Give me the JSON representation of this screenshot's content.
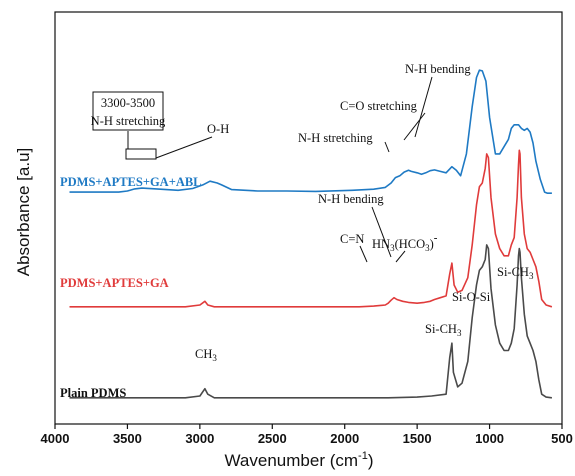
{
  "chart_data": {
    "type": "line",
    "xlabel": "Wavenumber (cm",
    "xlabel_sup": "-1",
    "xlabel_close": ")",
    "ylabel": "Absorbance [a.u]",
    "xlim": [
      4000,
      500
    ],
    "x_reversed": true,
    "x_ticks": [
      "4000",
      "3500",
      "3000",
      "2500",
      "2000",
      "1500",
      "1000",
      "500"
    ],
    "y_ticks": [],
    "grid": false,
    "series": [
      {
        "name": "PDMS+APTES+GA+ABL",
        "color": "#1f7ac4",
        "points": [
          [
            3900,
            0.615
          ],
          [
            3700,
            0.615
          ],
          [
            3560,
            0.615
          ],
          [
            3500,
            0.618
          ],
          [
            3450,
            0.624
          ],
          [
            3400,
            0.626
          ],
          [
            3300,
            0.624
          ],
          [
            3150,
            0.62
          ],
          [
            3050,
            0.625
          ],
          [
            2980,
            0.635
          ],
          [
            2930,
            0.645
          ],
          [
            2880,
            0.64
          ],
          [
            2850,
            0.635
          ],
          [
            2780,
            0.622
          ],
          [
            2600,
            0.618
          ],
          [
            2400,
            0.618
          ],
          [
            2200,
            0.617
          ],
          [
            1950,
            0.62
          ],
          [
            1800,
            0.623
          ],
          [
            1720,
            0.628
          ],
          [
            1680,
            0.64
          ],
          [
            1650,
            0.655
          ],
          [
            1620,
            0.66
          ],
          [
            1590,
            0.67
          ],
          [
            1560,
            0.675
          ],
          [
            1540,
            0.672
          ],
          [
            1500,
            0.668
          ],
          [
            1470,
            0.664
          ],
          [
            1440,
            0.668
          ],
          [
            1410,
            0.674
          ],
          [
            1380,
            0.676
          ],
          [
            1340,
            0.672
          ],
          [
            1300,
            0.668
          ],
          [
            1260,
            0.685
          ],
          [
            1230,
            0.675
          ],
          [
            1200,
            0.66
          ],
          [
            1160,
            0.72
          ],
          [
            1120,
            0.85
          ],
          [
            1090,
            0.93
          ],
          [
            1070,
            0.95
          ],
          [
            1050,
            0.948
          ],
          [
            1025,
            0.92
          ],
          [
            1000,
            0.82
          ],
          [
            960,
            0.72
          ],
          [
            930,
            0.72
          ],
          [
            900,
            0.74
          ],
          [
            870,
            0.76
          ],
          [
            850,
            0.79
          ],
          [
            830,
            0.8
          ],
          [
            800,
            0.8
          ],
          [
            780,
            0.79
          ],
          [
            760,
            0.785
          ],
          [
            740,
            0.79
          ],
          [
            720,
            0.78
          ],
          [
            700,
            0.75
          ],
          [
            680,
            0.7
          ],
          [
            650,
            0.65
          ],
          [
            620,
            0.615
          ],
          [
            600,
            0.612
          ],
          [
            570,
            0.612
          ]
        ]
      },
      {
        "name": "PDMS+APTES+GA",
        "color": "#e03b3b",
        "points": [
          [
            3900,
            0.3
          ],
          [
            3700,
            0.3
          ],
          [
            3500,
            0.3
          ],
          [
            3300,
            0.3
          ],
          [
            3100,
            0.3
          ],
          [
            3000,
            0.305
          ],
          [
            2965,
            0.315
          ],
          [
            2945,
            0.305
          ],
          [
            2900,
            0.3
          ],
          [
            2700,
            0.3
          ],
          [
            2500,
            0.3
          ],
          [
            2300,
            0.3
          ],
          [
            2100,
            0.3
          ],
          [
            1900,
            0.3
          ],
          [
            1800,
            0.302
          ],
          [
            1720,
            0.305
          ],
          [
            1700,
            0.31
          ],
          [
            1680,
            0.318
          ],
          [
            1660,
            0.325
          ],
          [
            1640,
            0.32
          ],
          [
            1600,
            0.315
          ],
          [
            1560,
            0.312
          ],
          [
            1500,
            0.31
          ],
          [
            1450,
            0.312
          ],
          [
            1410,
            0.315
          ],
          [
            1380,
            0.32
          ],
          [
            1340,
            0.325
          ],
          [
            1300,
            0.33
          ],
          [
            1275,
            0.39
          ],
          [
            1260,
            0.42
          ],
          [
            1245,
            0.36
          ],
          [
            1220,
            0.34
          ],
          [
            1190,
            0.345
          ],
          [
            1150,
            0.38
          ],
          [
            1120,
            0.47
          ],
          [
            1090,
            0.58
          ],
          [
            1070,
            0.63
          ],
          [
            1050,
            0.64
          ],
          [
            1030,
            0.68
          ],
          [
            1020,
            0.72
          ],
          [
            1008,
            0.71
          ],
          [
            990,
            0.6
          ],
          [
            960,
            0.5
          ],
          [
            930,
            0.46
          ],
          [
            900,
            0.44
          ],
          [
            870,
            0.44
          ],
          [
            850,
            0.47
          ],
          [
            830,
            0.49
          ],
          [
            810,
            0.6
          ],
          [
            800,
            0.69
          ],
          [
            795,
            0.73
          ],
          [
            790,
            0.72
          ],
          [
            780,
            0.6
          ],
          [
            760,
            0.5
          ],
          [
            740,
            0.46
          ],
          [
            720,
            0.45
          ],
          [
            700,
            0.43
          ],
          [
            680,
            0.41
          ],
          [
            660,
            0.37
          ],
          [
            640,
            0.32
          ],
          [
            610,
            0.305
          ],
          [
            570,
            0.3
          ]
        ]
      },
      {
        "name": "Plain PDMS",
        "color": "#4a4a4a",
        "points": [
          [
            3900,
            0.05
          ],
          [
            3700,
            0.05
          ],
          [
            3500,
            0.05
          ],
          [
            3300,
            0.05
          ],
          [
            3100,
            0.05
          ],
          [
            3000,
            0.055
          ],
          [
            2965,
            0.075
          ],
          [
            2945,
            0.06
          ],
          [
            2900,
            0.05
          ],
          [
            2700,
            0.05
          ],
          [
            2500,
            0.05
          ],
          [
            2300,
            0.05
          ],
          [
            2100,
            0.05
          ],
          [
            1900,
            0.05
          ],
          [
            1700,
            0.05
          ],
          [
            1500,
            0.052
          ],
          [
            1400,
            0.055
          ],
          [
            1300,
            0.06
          ],
          [
            1275,
            0.16
          ],
          [
            1260,
            0.2
          ],
          [
            1250,
            0.12
          ],
          [
            1220,
            0.08
          ],
          [
            1190,
            0.09
          ],
          [
            1150,
            0.15
          ],
          [
            1120,
            0.27
          ],
          [
            1090,
            0.36
          ],
          [
            1070,
            0.4
          ],
          [
            1050,
            0.41
          ],
          [
            1030,
            0.43
          ],
          [
            1020,
            0.47
          ],
          [
            1008,
            0.46
          ],
          [
            990,
            0.35
          ],
          [
            960,
            0.25
          ],
          [
            930,
            0.2
          ],
          [
            900,
            0.18
          ],
          [
            870,
            0.18
          ],
          [
            850,
            0.2
          ],
          [
            830,
            0.24
          ],
          [
            810,
            0.36
          ],
          [
            800,
            0.44
          ],
          [
            795,
            0.46
          ],
          [
            790,
            0.45
          ],
          [
            780,
            0.38
          ],
          [
            760,
            0.28
          ],
          [
            740,
            0.22
          ],
          [
            720,
            0.2
          ],
          [
            700,
            0.18
          ],
          [
            680,
            0.15
          ],
          [
            660,
            0.1
          ],
          [
            640,
            0.06
          ],
          [
            610,
            0.052
          ],
          [
            570,
            0.05
          ]
        ]
      }
    ],
    "series_labels": [
      "PDMS+APTES+GA+ABL",
      "PDMS+APTES+GA",
      "Plain PDMS"
    ],
    "annotations": {
      "box_range": "3300-3500",
      "box_nh_stretch": "N-H stretching",
      "oh": "O-H",
      "nh_stretch_blue": "N-H stretching",
      "co_stretch": "C=O stretching",
      "nh_bend_blue": "N-H bending",
      "nh_bend_red": "N-H bending",
      "hn3": "HN",
      "hn3_sub": "3",
      "hn3_rest": "(HCO",
      "hn3_sub2": "3",
      "hn3_close": ")",
      "hn3_sup": "-",
      "cn": "C=N",
      "ch3": "CH",
      "ch3_sub": "3",
      "sich3_low": "Si-CH",
      "sich3_low_sub": "3",
      "siosi": "Si-O-Si",
      "sich3_high": "Si-CH",
      "sich3_high_sub": "3"
    }
  }
}
